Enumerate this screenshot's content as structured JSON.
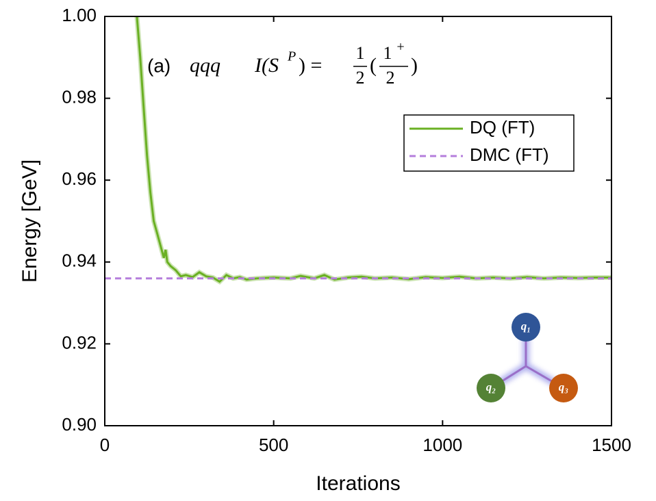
{
  "chart_data": {
    "type": "line",
    "xlabel": "Iterations",
    "ylabel": "Energy [GeV]",
    "xlim": [
      0,
      1500
    ],
    "ylim": [
      0.9,
      1.0
    ],
    "xticks": [
      0,
      500,
      1000,
      1500
    ],
    "yticks": [
      {
        "value": 0.9,
        "label": "0.90"
      },
      0.92,
      0.94,
      0.96,
      0.98,
      {
        "value": 1.0,
        "label": "1.00"
      }
    ],
    "legend": "upper right",
    "annotation": {
      "label": "(a)",
      "system": "qqq",
      "lhs": "I(S",
      "sup": "P",
      "eq": ") =",
      "frac1_num": "1",
      "frac1_den": "2",
      "open": "(",
      "frac2_num": "1",
      "frac2_sup": "+",
      "frac2_den": "2",
      "close": ")"
    },
    "inset": {
      "nodes": [
        {
          "label": "q₁",
          "color": "#2f5597"
        },
        {
          "label": "q₂",
          "color": "#548235"
        },
        {
          "label": "q₃",
          "color": "#c55a11"
        }
      ]
    },
    "series": [
      {
        "name": "DQ (FT)",
        "color": "#6ab023",
        "dashed": false,
        "x": [
          95,
          105,
          115,
          125,
          135,
          145,
          155,
          165,
          175,
          180,
          185,
          195,
          210,
          225,
          240,
          260,
          280,
          300,
          320,
          340,
          360,
          380,
          400,
          420,
          450,
          500,
          550,
          580,
          620,
          650,
          680,
          720,
          760,
          800,
          850,
          900,
          950,
          1000,
          1050,
          1100,
          1150,
          1200,
          1250,
          1300,
          1350,
          1400,
          1450,
          1500
        ],
        "values": [
          1.0,
          0.99,
          0.978,
          0.966,
          0.957,
          0.95,
          0.947,
          0.944,
          0.941,
          0.943,
          0.94,
          0.939,
          0.938,
          0.9365,
          0.9368,
          0.9363,
          0.9375,
          0.9365,
          0.9362,
          0.9352,
          0.9368,
          0.936,
          0.9363,
          0.9357,
          0.936,
          0.9362,
          0.936,
          0.9366,
          0.936,
          0.9368,
          0.9357,
          0.9362,
          0.9364,
          0.936,
          0.9362,
          0.9358,
          0.9363,
          0.9361,
          0.9364,
          0.936,
          0.9362,
          0.936,
          0.9363,
          0.936,
          0.9362,
          0.9361,
          0.9362,
          0.9362
        ]
      },
      {
        "name": "DMC (FT)",
        "color": "#b57edc",
        "dashed": true,
        "x": [
          0,
          1500
        ],
        "values": [
          0.936,
          0.936
        ]
      }
    ]
  }
}
